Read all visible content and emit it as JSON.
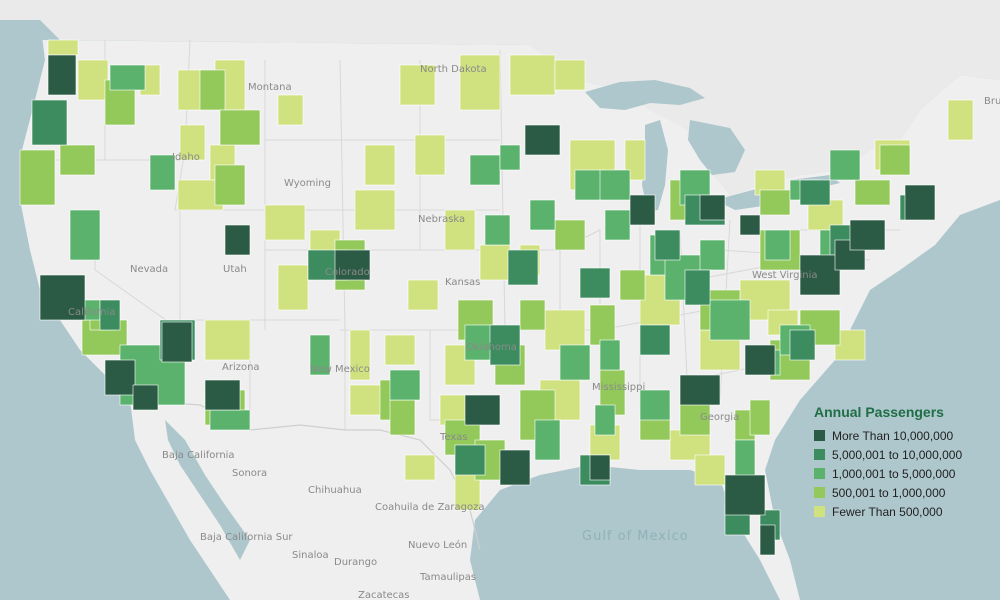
{
  "legend": {
    "title": "Annual Passengers",
    "items": [
      {
        "label": "More Than 10,000,000",
        "color": "#2b5a45"
      },
      {
        "label": "5,000,001 to 10,000,000",
        "color": "#3c8c5f"
      },
      {
        "label": "1,000,001 to 5,000,000",
        "color": "#5bb26c"
      },
      {
        "label": "500,001 to 1,000,000",
        "color": "#93c95b"
      },
      {
        "label": "Fewer Than 500,000",
        "color": "#cfe27f"
      }
    ]
  },
  "map_labels": {
    "states": [
      "Montana",
      "North Dakota",
      "Idaho",
      "Wyoming",
      "Nebraska",
      "Nevada",
      "Utah",
      "Colorado",
      "Kansas",
      "California",
      "Arizona",
      "New Mexico",
      "Oklahoma",
      "Texas",
      "Mississippi",
      "Georgia",
      "West Virginia"
    ],
    "mexico": [
      "Baja California",
      "Sonora",
      "Chihuahua",
      "Coahuila de Zaragoza",
      "Sinaloa",
      "Durango",
      "Nuevo León",
      "Tamaulipas",
      "Zacatecas",
      "Baja California Sur"
    ],
    "water": [
      "Gulf of Mexico"
    ],
    "other": [
      "Bru"
    ]
  },
  "colors": {
    "land": "#efefef",
    "water": "#aec7cc",
    "border": "#d6d6d6"
  }
}
